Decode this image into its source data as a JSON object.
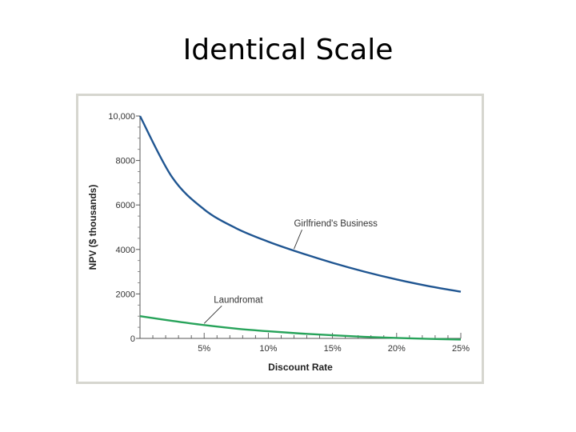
{
  "slide": {
    "title": "Identical Scale"
  },
  "chart_data": {
    "type": "line",
    "title": "",
    "xlabel": "Discount Rate",
    "ylabel": "NPV ($ thousands)",
    "xlim": [
      0,
      25
    ],
    "ylim": [
      0,
      10000
    ],
    "x_ticks": [
      5,
      10,
      15,
      20,
      25
    ],
    "x_tick_labels": [
      "5%",
      "10%",
      "15%",
      "20%",
      "25%"
    ],
    "y_ticks": [
      0,
      2000,
      4000,
      6000,
      8000,
      10000
    ],
    "y_tick_labels": [
      "0",
      "2000",
      "4000",
      "6000",
      "8000",
      "10,000"
    ],
    "grid": false,
    "series": [
      {
        "name": "Girlfriend's Business",
        "color": "#1f5591",
        "x": [
          0,
          2.5,
          5,
          7.5,
          10,
          12.5,
          15,
          17.5,
          20,
          22.5,
          25
        ],
        "y": [
          10000,
          7250,
          5800,
          4950,
          4350,
          3850,
          3400,
          3000,
          2650,
          2350,
          2100
        ]
      },
      {
        "name": "Laundromat",
        "color": "#27a35a",
        "x": [
          0,
          2.5,
          5,
          7.5,
          10,
          12.5,
          15,
          17.5,
          20,
          22.5,
          25
        ],
        "y": [
          1000,
          790,
          600,
          440,
          320,
          220,
          140,
          70,
          20,
          -20,
          -50
        ]
      }
    ],
    "annotations": [
      {
        "text": "Girlfriend's Business",
        "points_to_series": "Girlfriend's Business",
        "at_x": 12
      },
      {
        "text": "Laundromat",
        "points_to_series": "Laundromat",
        "at_x": 5
      }
    ]
  }
}
